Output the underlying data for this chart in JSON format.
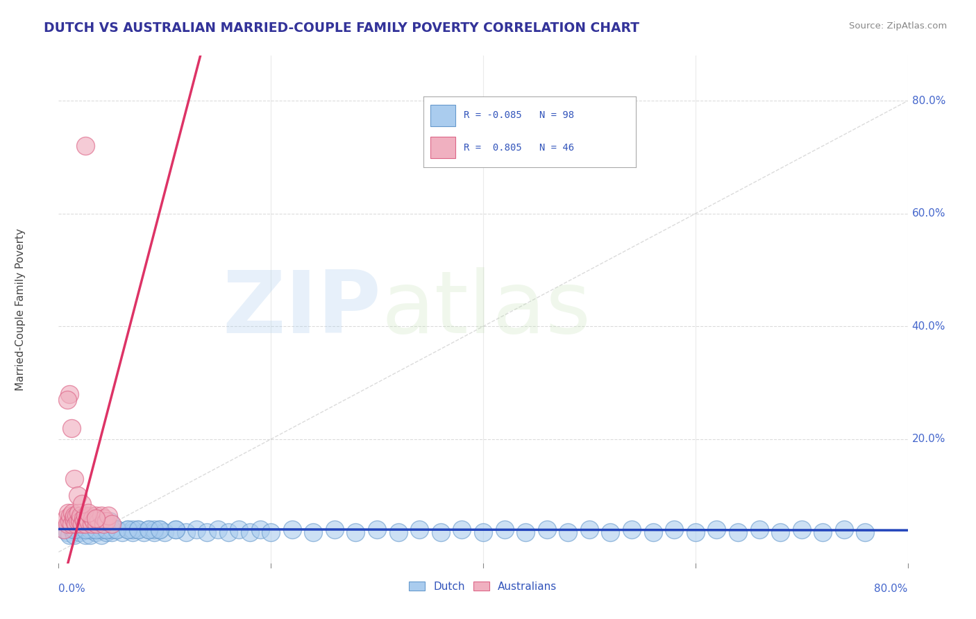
{
  "title": "DUTCH VS AUSTRALIAN MARRIED-COUPLE FAMILY POVERTY CORRELATION CHART",
  "source": "Source: ZipAtlas.com",
  "ylabel": "Married-Couple Family Poverty",
  "xlim": [
    0.0,
    0.8
  ],
  "ylim": [
    -0.02,
    0.88
  ],
  "dutch_color": "#aaccee",
  "dutch_edge_color": "#6699cc",
  "australian_color": "#f0b0c0",
  "australian_edge_color": "#dd6688",
  "trend_dutch_color": "#2244bb",
  "trend_australian_color": "#dd3366",
  "diagonal_color": "#cccccc",
  "R_dutch": -0.085,
  "N_dutch": 98,
  "R_australian": 0.805,
  "N_australian": 46,
  "watermark_zip": "ZIP",
  "watermark_atlas": "atlas",
  "background_color": "#ffffff",
  "grid_color": "#cccccc",
  "title_color": "#333399",
  "axis_tick_color": "#4466cc",
  "legend_text_color": "#3355bb",
  "dutch_x": [
    0.005,
    0.008,
    0.01,
    0.012,
    0.013,
    0.015,
    0.015,
    0.016,
    0.018,
    0.02,
    0.02,
    0.022,
    0.023,
    0.025,
    0.025,
    0.027,
    0.028,
    0.03,
    0.03,
    0.032,
    0.033,
    0.035,
    0.035,
    0.036,
    0.038,
    0.04,
    0.04,
    0.042,
    0.043,
    0.045,
    0.045,
    0.047,
    0.048,
    0.05,
    0.055,
    0.06,
    0.065,
    0.07,
    0.075,
    0.08,
    0.085,
    0.09,
    0.095,
    0.1,
    0.11,
    0.12,
    0.13,
    0.14,
    0.15,
    0.16,
    0.17,
    0.18,
    0.19,
    0.2,
    0.22,
    0.24,
    0.26,
    0.28,
    0.3,
    0.32,
    0.34,
    0.36,
    0.38,
    0.4,
    0.42,
    0.44,
    0.46,
    0.48,
    0.5,
    0.52,
    0.54,
    0.56,
    0.58,
    0.6,
    0.62,
    0.64,
    0.66,
    0.68,
    0.7,
    0.72,
    0.74,
    0.76,
    0.02,
    0.03,
    0.04,
    0.05,
    0.07,
    0.09,
    0.11,
    0.015,
    0.025,
    0.035,
    0.045,
    0.055,
    0.065,
    0.075,
    0.085,
    0.095
  ],
  "dutch_y": [
    0.04,
    0.035,
    0.03,
    0.05,
    0.04,
    0.06,
    0.03,
    0.05,
    0.04,
    0.035,
    0.055,
    0.04,
    0.06,
    0.03,
    0.05,
    0.04,
    0.055,
    0.03,
    0.05,
    0.04,
    0.06,
    0.035,
    0.05,
    0.04,
    0.055,
    0.03,
    0.05,
    0.04,
    0.055,
    0.035,
    0.05,
    0.04,
    0.055,
    0.035,
    0.04,
    0.035,
    0.04,
    0.035,
    0.04,
    0.035,
    0.04,
    0.035,
    0.04,
    0.035,
    0.04,
    0.035,
    0.04,
    0.035,
    0.04,
    0.035,
    0.04,
    0.035,
    0.04,
    0.035,
    0.04,
    0.035,
    0.04,
    0.035,
    0.04,
    0.035,
    0.04,
    0.035,
    0.04,
    0.035,
    0.04,
    0.035,
    0.04,
    0.035,
    0.04,
    0.035,
    0.04,
    0.035,
    0.04,
    0.035,
    0.04,
    0.035,
    0.04,
    0.035,
    0.04,
    0.035,
    0.04,
    0.035,
    0.045,
    0.04,
    0.04,
    0.04,
    0.04,
    0.04,
    0.04,
    0.04,
    0.04,
    0.04,
    0.04,
    0.04,
    0.04,
    0.04,
    0.04,
    0.04
  ],
  "australian_x": [
    0.005,
    0.007,
    0.008,
    0.009,
    0.01,
    0.011,
    0.012,
    0.013,
    0.014,
    0.015,
    0.015,
    0.016,
    0.017,
    0.018,
    0.019,
    0.02,
    0.02,
    0.021,
    0.022,
    0.023,
    0.024,
    0.025,
    0.025,
    0.027,
    0.028,
    0.03,
    0.031,
    0.032,
    0.033,
    0.035,
    0.036,
    0.037,
    0.038,
    0.04,
    0.042,
    0.043,
    0.045,
    0.047,
    0.05,
    0.01,
    0.012,
    0.015,
    0.018,
    0.022,
    0.028,
    0.035
  ],
  "australian_y": [
    0.04,
    0.06,
    0.05,
    0.07,
    0.055,
    0.065,
    0.05,
    0.07,
    0.06,
    0.055,
    0.065,
    0.05,
    0.065,
    0.055,
    0.07,
    0.06,
    0.055,
    0.065,
    0.05,
    0.06,
    0.055,
    0.065,
    0.05,
    0.06,
    0.055,
    0.065,
    0.05,
    0.06,
    0.055,
    0.065,
    0.05,
    0.06,
    0.055,
    0.065,
    0.05,
    0.06,
    0.055,
    0.065,
    0.05,
    0.28,
    0.22,
    0.13,
    0.1,
    0.085,
    0.07,
    0.06
  ],
  "aus_outlier_x": [
    0.025
  ],
  "aus_outlier_y": [
    0.72
  ],
  "aus_outlier2_x": [
    0.008
  ],
  "aus_outlier2_y": [
    0.27
  ]
}
